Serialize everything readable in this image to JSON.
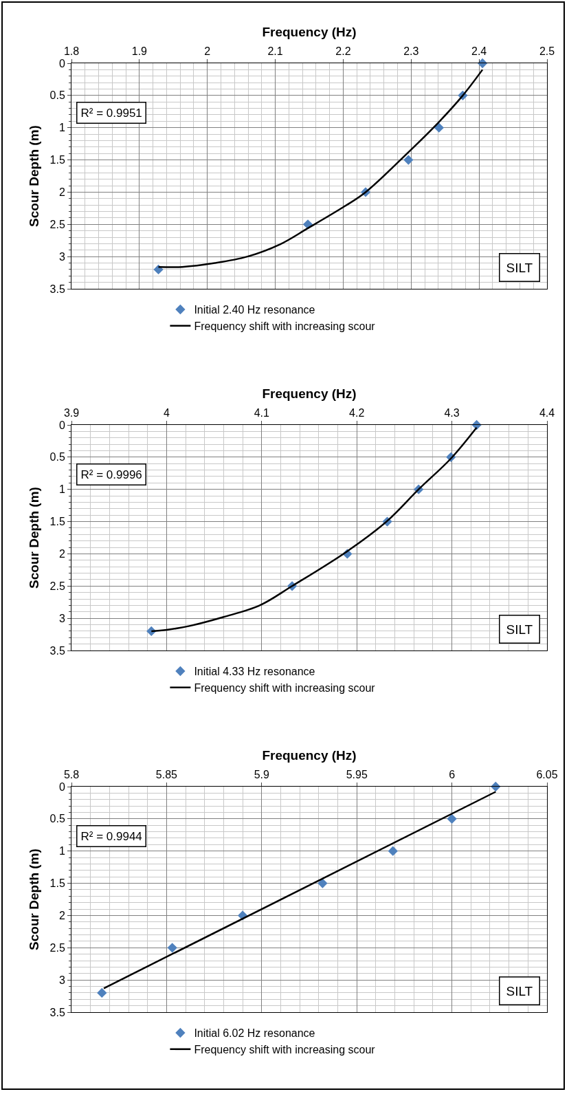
{
  "chart_data": [
    {
      "type": "scatter",
      "xlabel": "Frequency (Hz)",
      "ylabel": "Scour Depth (m)",
      "xlim": [
        1.8,
        2.5
      ],
      "xticks": [
        1.8,
        1.9,
        2,
        2.1,
        2.2,
        2.3,
        2.4,
        2.5
      ],
      "ylim": [
        3.5,
        0
      ],
      "yticks": [
        0,
        0.5,
        1,
        1.5,
        2,
        2.5,
        3,
        3.5
      ],
      "grid": true,
      "legend": "bottom",
      "annotations": [
        "R² = 0.9951",
        "SILT"
      ],
      "series": [
        {
          "name": "Initial 2.40 Hz resonance",
          "marker": "diamond",
          "color": "#4f81bd",
          "x": [
            2.405,
            2.376,
            2.341,
            2.296,
            2.233,
            2.148,
            1.928
          ],
          "values": [
            0,
            0.5,
            1,
            1.5,
            2,
            2.5,
            3.2
          ]
        },
        {
          "name": "Frequency shift with increasing scour",
          "type": "line",
          "marker": "none",
          "line_style": "solid",
          "color": "#000000",
          "x": [
            1.928,
            1.963,
            2.011,
            2.059,
            2.107,
            2.148,
            2.202,
            2.233,
            2.296,
            2.341,
            2.376,
            2.405
          ],
          "values": [
            3.16,
            3.16,
            3.1,
            3.0,
            2.81,
            2.56,
            2.22,
            2.0,
            1.38,
            0.91,
            0.5,
            0.1
          ]
        }
      ]
    },
    {
      "type": "scatter",
      "xlabel": "Frequency (Hz)",
      "ylabel": "Scour Depth (m)",
      "xlim": [
        3.9,
        4.4
      ],
      "xticks": [
        3.9,
        4,
        4.1,
        4.2,
        4.3,
        4.4
      ],
      "ylim": [
        3.5,
        0
      ],
      "yticks": [
        0,
        0.5,
        1,
        1.5,
        2,
        2.5,
        3,
        3.5
      ],
      "grid": true,
      "legend": "bottom",
      "annotations": [
        "R² = 0.9996",
        "SILT"
      ],
      "series": [
        {
          "name": "Initial 4.33 Hz resonance",
          "marker": "diamond",
          "color": "#4f81bd",
          "x": [
            4.326,
            4.299,
            4.265,
            4.232,
            4.19,
            4.132,
            3.984
          ],
          "values": [
            0,
            0.5,
            1,
            1.5,
            2,
            2.5,
            3.2
          ]
        },
        {
          "name": "Frequency shift with increasing scour",
          "type": "line",
          "marker": "none",
          "line_style": "solid",
          "color": "#000000",
          "x": [
            3.984,
            4.0,
            4.024,
            4.06,
            4.098,
            4.132,
            4.19,
            4.232,
            4.265,
            4.299,
            4.326
          ],
          "values": [
            3.2,
            3.18,
            3.12,
            2.98,
            2.8,
            2.5,
            1.96,
            1.49,
            1.0,
            0.52,
            0.04
          ]
        }
      ]
    },
    {
      "type": "scatter",
      "xlabel": "Frequency (Hz)",
      "ylabel": "Scour Depth (m)",
      "xlim": [
        5.8,
        6.05
      ],
      "xticks": [
        5.8,
        5.85,
        5.9,
        5.95,
        6,
        6.05
      ],
      "ylim": [
        3.5,
        0
      ],
      "yticks": [
        0,
        0.5,
        1,
        1.5,
        2,
        2.5,
        3,
        3.5
      ],
      "grid": true,
      "legend": "bottom",
      "annotations": [
        "R² = 0.9944",
        "SILT"
      ],
      "series": [
        {
          "name": "Initial 6.02 Hz resonance",
          "marker": "diamond",
          "color": "#4f81bd",
          "x": [
            6.023,
            6.0,
            5.969,
            5.932,
            5.89,
            5.853,
            5.816
          ],
          "values": [
            0,
            0.5,
            1,
            1.5,
            2,
            2.5,
            3.2
          ]
        },
        {
          "name": "Frequency shift with increasing scour",
          "type": "line",
          "marker": "none",
          "line_style": "solid",
          "color": "#000000",
          "x": [
            5.817,
            6.023
          ],
          "values": [
            3.13,
            0.08
          ]
        }
      ]
    }
  ]
}
